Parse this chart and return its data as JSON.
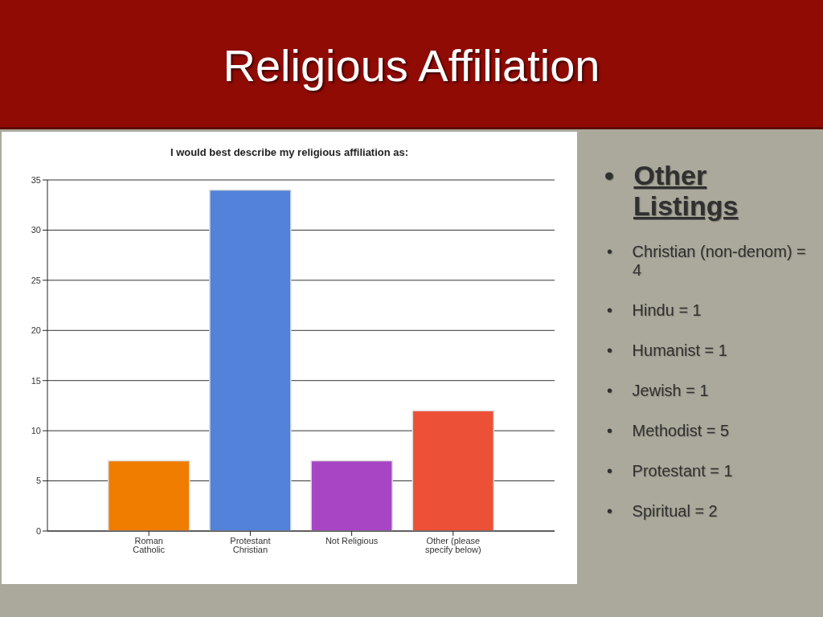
{
  "chart_data": {
    "type": "bar",
    "title": "Religious Affiliation",
    "subtitle": "I would best describe my religious affiliation as:",
    "categories": [
      "Roman Catholic",
      "Protestant Christian",
      "Not Religious",
      "Other (please specify below)"
    ],
    "values": [
      7,
      34,
      7,
      12
    ],
    "colors": [
      "#f07c00",
      "#5282d9",
      "#a845c4",
      "#ec5036"
    ],
    "ylim": [
      0,
      35
    ],
    "yticks": [
      0,
      5,
      10,
      15,
      20,
      25,
      30,
      35
    ],
    "grid": "y",
    "annotations": [
      "• Other Listings",
      "• Christian (non-denom) = 4",
      "• Hindu = 1",
      "• Humanist = 1",
      "• Jewish = 1",
      "• Methodist = 5",
      "• Protestant = 1",
      "• Spiritual = 2"
    ]
  }
}
